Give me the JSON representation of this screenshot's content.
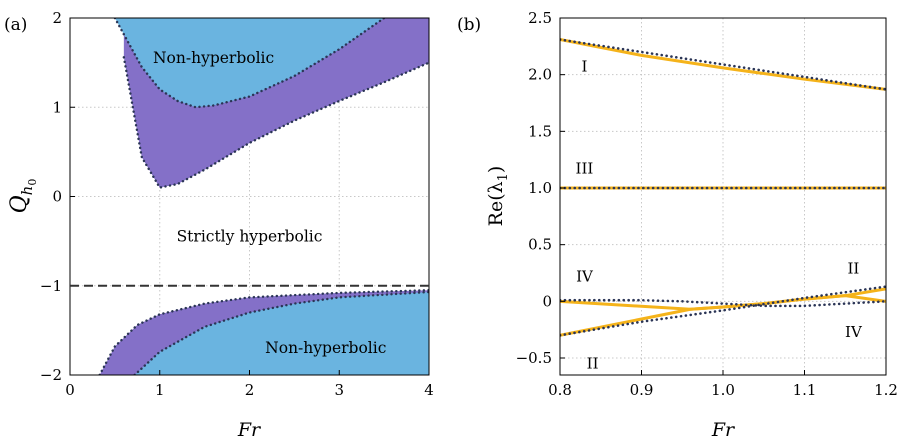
{
  "chart_data": [
    {
      "panel_label": "(a)",
      "type": "area",
      "xlabel": "Fr",
      "ylabel": "Q",
      "ylabel_subscript": "h",
      "ylabel_subsubscript": "0",
      "xlim": [
        0,
        4
      ],
      "ylim": [
        -2,
        2
      ],
      "xticks": [
        0,
        1,
        2,
        3,
        4
      ],
      "xtick_labels": [
        "0",
        "1",
        "2",
        "3",
        "4"
      ],
      "yticks": [
        -2,
        -1,
        0,
        1,
        2
      ],
      "ytick_labels": [
        "−2",
        "−1",
        "0",
        "1",
        "2"
      ],
      "grid": true,
      "dashed_line_y": -1,
      "colors": {
        "non_hyperbolic": "#6ab4e0",
        "weakly_band": "#8470c8",
        "boundary": "#2b3556",
        "dashed": "#333333"
      },
      "series": [
        {
          "region": "upper",
          "x": [
            0.6,
            0.8,
            1.0,
            1.2,
            1.5,
            2.0,
            2.5,
            3.0,
            3.5,
            4.0
          ],
          "outer_y": [
            1.56,
            0.44,
            0.1,
            0.14,
            0.3,
            0.6,
            0.85,
            1.07,
            1.28,
            1.5
          ]
        },
        {
          "region": "upper",
          "x": [
            0.5,
            0.8,
            1.0,
            1.2,
            1.4,
            1.6,
            2.0,
            2.5,
            3.0,
            3.5
          ],
          "inner_y": [
            2.0,
            1.45,
            1.2,
            1.07,
            1.0,
            1.02,
            1.12,
            1.35,
            1.65,
            2.0
          ]
        },
        {
          "region": "lower",
          "x": [
            0.33,
            0.5,
            0.75,
            1.0,
            1.5,
            2.0,
            3.0,
            4.0
          ],
          "outer_y": [
            -2.0,
            -1.68,
            -1.44,
            -1.32,
            -1.2,
            -1.13,
            -1.08,
            -1.05
          ]
        },
        {
          "region": "lower",
          "x": [
            0.72,
            1.0,
            1.5,
            2.0,
            2.5,
            3.0,
            4.0
          ],
          "inner_y": [
            -2.0,
            -1.74,
            -1.46,
            -1.3,
            -1.2,
            -1.13,
            -1.07
          ]
        }
      ],
      "annotations": [
        {
          "text": "Non-hyperbolic",
          "x": 1.6,
          "y": 1.55
        },
        {
          "text": "Strictly hyperbolic",
          "x": 2.0,
          "y": -0.45
        },
        {
          "text": "Non-hyperbolic",
          "x": 2.85,
          "y": -1.7
        }
      ]
    },
    {
      "panel_label": "(b)",
      "type": "line",
      "xlabel": "Fr",
      "ylabel": "Re(λ",
      "ylabel_subscript": "1",
      "ylabel_suffix": ")",
      "xlim": [
        0.8,
        1.2
      ],
      "ylim": [
        -0.65,
        2.5
      ],
      "xticks": [
        0.8,
        0.9,
        1.0,
        1.1,
        1.2
      ],
      "xtick_labels": [
        "0.8",
        "0.9",
        "1.0",
        "1.1",
        "1.2"
      ],
      "yticks": [
        -0.5,
        0,
        0.5,
        1.0,
        1.5,
        2.0,
        2.5
      ],
      "ytick_labels": [
        "−0.5",
        "0",
        "0.5",
        "1.0",
        "1.5",
        "2.0",
        "2.5"
      ],
      "grid": true,
      "colors": {
        "solid": "#f5b31a",
        "dotted": "#2b3556"
      },
      "series": [
        {
          "x": [
            0.8,
            0.9,
            1.0,
            1.1,
            1.2
          ],
          "solid_y": [
            2.31,
            2.17,
            2.06,
            1.96,
            1.87
          ]
        },
        {
          "x": [
            0.8,
            1.2
          ],
          "solid_y": [
            1.0,
            1.0
          ]
        },
        {
          "x": [
            0.8,
            0.96,
            1.0,
            1.05,
            1.1,
            1.15,
            1.2
          ],
          "solid_y": [
            -0.3,
            -0.07,
            -0.05,
            -0.02,
            0.02,
            0.05,
            0.11
          ]
        },
        {
          "x": [
            0.8,
            0.96,
            1.0,
            1.05,
            1.1,
            1.15,
            1.2
          ],
          "solid_y": [
            0.0,
            -0.07,
            -0.05,
            -0.02,
            0.02,
            0.05,
            0.0
          ]
        },
        {
          "x": [
            0.8,
            0.85,
            0.9,
            0.95,
            1.0,
            1.05,
            1.1,
            1.15,
            1.2
          ],
          "dotted_y": [
            0.01,
            0.01,
            0.01,
            0.0,
            -0.02,
            -0.04,
            -0.04,
            -0.02,
            0.0
          ]
        },
        {
          "x": [
            0.8,
            0.9,
            1.0,
            1.1,
            1.2
          ],
          "dotted_y": [
            -0.3,
            -0.18,
            -0.08,
            0.03,
            0.13
          ]
        },
        {
          "x": [
            0.8,
            1.2
          ],
          "dotted_y": [
            2.31,
            1.87
          ]
        },
        {
          "x": [
            0.8,
            1.2
          ],
          "dotted_y": [
            1.0,
            1.0
          ]
        }
      ],
      "annotations": [
        {
          "text": "I",
          "x": 0.83,
          "y": 2.07
        },
        {
          "text": "III",
          "x": 0.83,
          "y": 1.17
        },
        {
          "text": "IV",
          "x": 0.83,
          "y": 0.22
        },
        {
          "text": "II",
          "x": 1.16,
          "y": 0.29
        },
        {
          "text": "IV",
          "x": 1.16,
          "y": -0.27
        },
        {
          "text": "II",
          "x": 0.84,
          "y": -0.55
        }
      ]
    }
  ]
}
